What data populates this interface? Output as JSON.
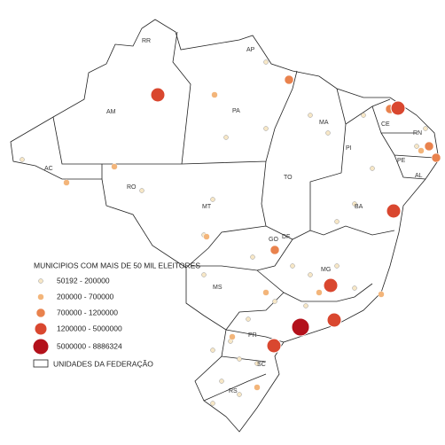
{
  "legend": {
    "title": "MUNICIPIOS COM MAIS DE 50 MIL ELEITORES",
    "items": [
      {
        "label": "50192 - 200000"
      },
      {
        "label": "200000 - 700000"
      },
      {
        "label": "700000 - 1200000"
      },
      {
        "label": "1200000 - 5000000"
      },
      {
        "label": "5000000 - 8886324"
      }
    ],
    "boundary_label": "UNIDADES DA FEDERAÇÃO"
  },
  "states": [
    "RR",
    "AP",
    "AM",
    "PA",
    "MA",
    "CE",
    "RN",
    "PI",
    "PE",
    "AL",
    "AC",
    "RO",
    "MT",
    "TO",
    "BA",
    "GO",
    "DF",
    "MG",
    "MS",
    "PR",
    "SC",
    "RS"
  ]
}
